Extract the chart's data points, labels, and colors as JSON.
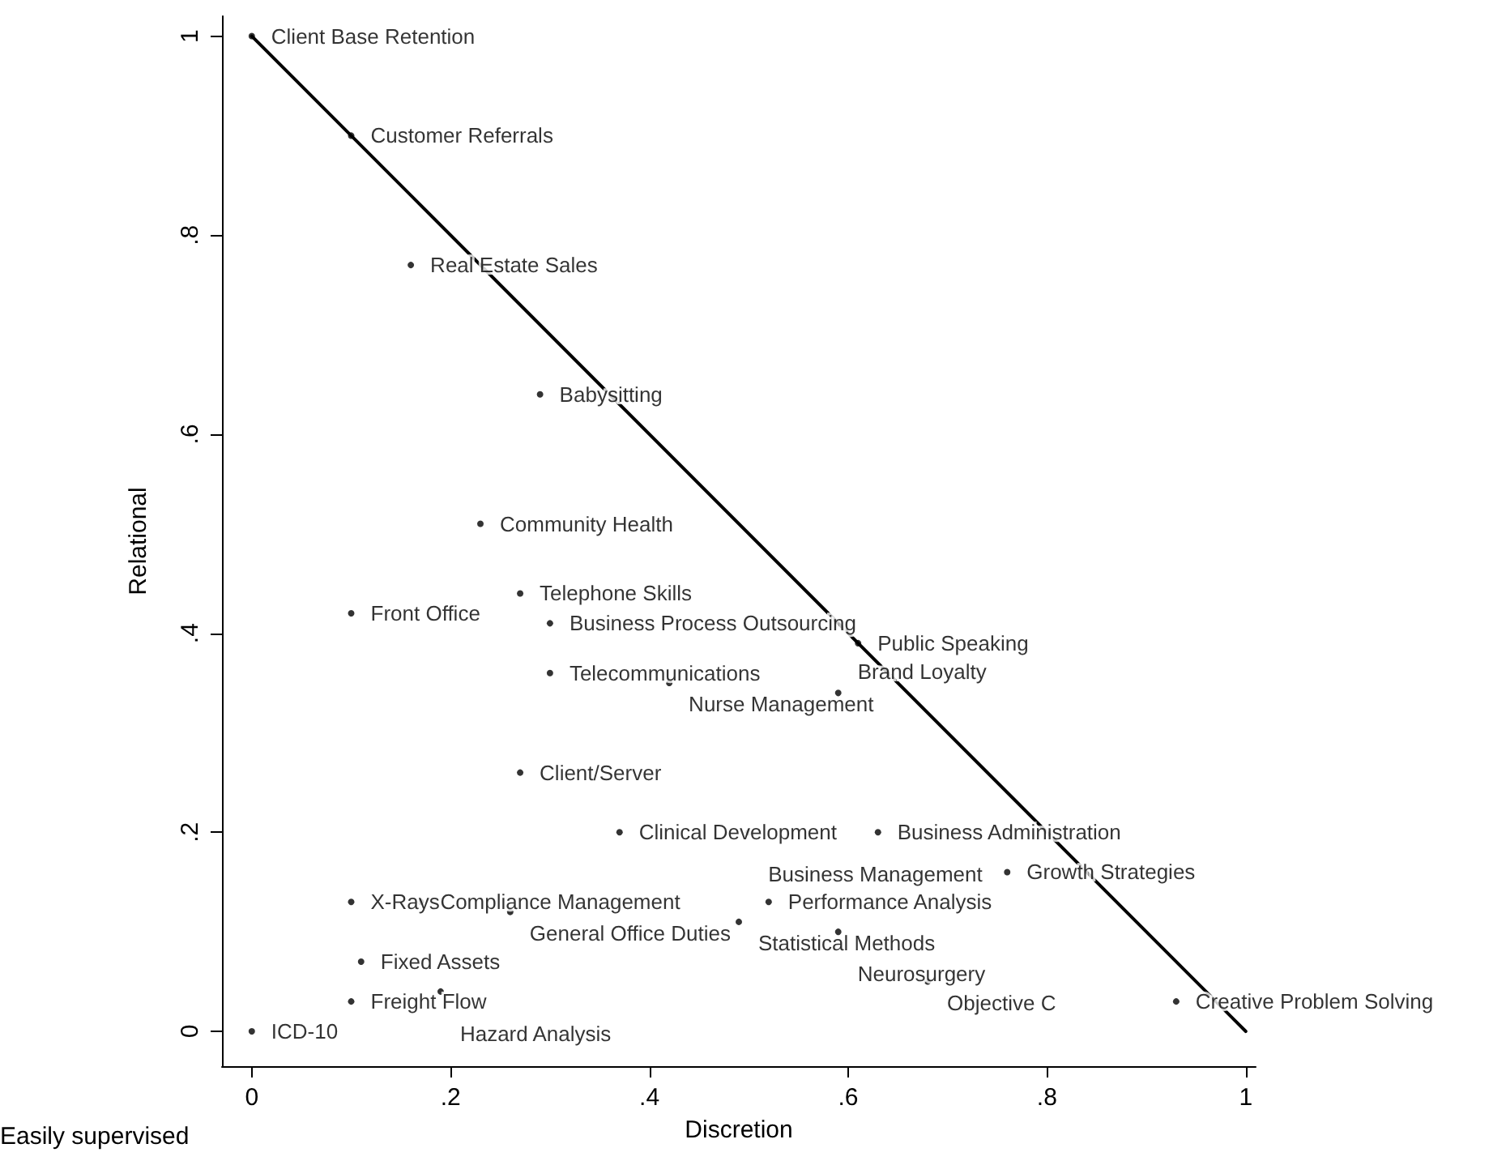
{
  "chart_data": {
    "type": "scatter",
    "xlabel": "Discretion",
    "ylabel": "Relational",
    "annotations": [
      "Easily supervised"
    ],
    "xlim": [
      -0.03,
      1.01
    ],
    "ylim": [
      -0.035,
      1.02
    ],
    "xticks": [
      0,
      {
        "value": 0.2,
        "label": ".2"
      },
      {
        "value": 0.4,
        "label": ".4"
      },
      {
        "value": 0.6,
        "label": ".6"
      },
      {
        "value": 0.8,
        "label": ".8"
      },
      1
    ],
    "yticks": [
      0,
      {
        "value": 0.2,
        "label": ".2"
      },
      {
        "value": 0.4,
        "label": ".4"
      },
      {
        "value": 0.6,
        "label": ".6"
      },
      {
        "value": 0.8,
        "label": ".8"
      },
      1
    ],
    "grid": false,
    "series": [
      {
        "marker": "circle",
        "color": "#000000",
        "x": [
          0,
          0.1,
          0.16,
          0.29,
          0.23,
          0.27,
          0.1,
          0.3,
          0.61,
          0.3,
          0.42,
          0.59,
          0.27,
          0.37,
          0.5,
          0.63,
          0.76,
          0.52,
          0.1,
          0.17,
          0.26,
          0.49,
          0.59,
          0.11,
          0.68,
          0.93,
          0.1,
          0.19,
          0
        ],
        "values": [
          1,
          0.9,
          0.77,
          0.64,
          0.51,
          0.44,
          0.42,
          0.41,
          0.39,
          0.36,
          0.35,
          0.34,
          0.26,
          0.2,
          0.2,
          0.2,
          0.16,
          0.13,
          0.13,
          0.13,
          0.12,
          0.11,
          0.1,
          0.07,
          0.05,
          0.03,
          0.03,
          0.04,
          0
        ],
        "value_labels": [
          "Client Base Retention",
          "Customer Referrals",
          "Real Estate Sales",
          "Babysitting",
          "Community Health",
          "Telephone Skills",
          "Front Office",
          "Business Process Outsourcing",
          "Public Speaking",
          "Telecommunications",
          "Nurse Management",
          "Brand Loyalty",
          "Client/Server",
          "Clinical Development",
          "Business Management",
          "Business Administration",
          "Growth Strategies",
          "Performance Analysis",
          "X-Rays",
          "Compliance Management",
          "General Office Duties",
          "Statistical Methods",
          "Neurosurgery",
          "Fixed Assets",
          "Objective C",
          "Creative Problem Solving",
          "Freight Flow",
          "Hazard Analysis",
          "ICD-10"
        ]
      },
      {
        "type": "line",
        "marker": "none",
        "line_style": "solid",
        "color": "#000000",
        "x": [
          0,
          1
        ],
        "values": [
          1,
          0
        ]
      }
    ]
  }
}
